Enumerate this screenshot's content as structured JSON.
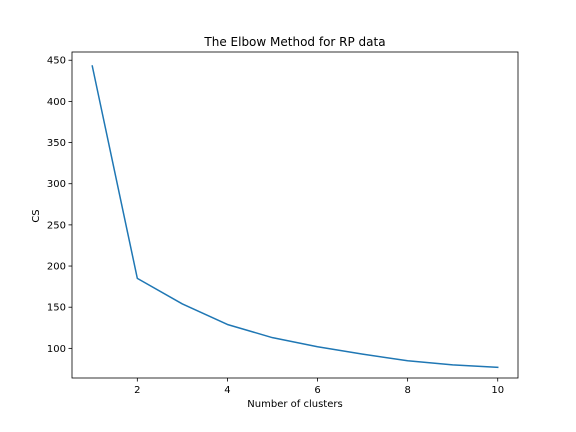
{
  "chart_data": {
    "type": "line",
    "title": "The Elbow Method for RP data",
    "xlabel": "Number of clusters",
    "ylabel": "CS",
    "xlim": [
      0.55,
      10.45
    ],
    "ylim": [
      64,
      460
    ],
    "xticks": [
      2,
      4,
      6,
      8,
      10
    ],
    "yticks": [
      100,
      150,
      200,
      250,
      300,
      350,
      400,
      450
    ],
    "grid": false,
    "series": [
      {
        "color": "#1f77b4",
        "x": [
          1,
          2,
          3,
          4,
          5,
          6,
          7,
          8,
          9,
          10
        ],
        "y": [
          443,
          185,
          154,
          129,
          113,
          102,
          93,
          85,
          80,
          77
        ]
      }
    ]
  }
}
